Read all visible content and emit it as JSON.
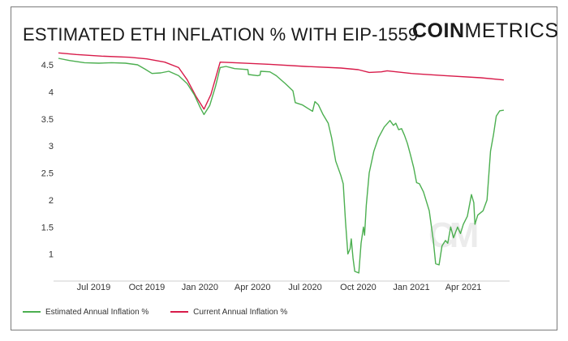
{
  "header": {
    "title": "ESTIMATED ETH INFLATION % WITH EIP-1559",
    "brand_bold": "COIN",
    "brand_regular": "METRICS",
    "watermark": "CM"
  },
  "chart_data": {
    "type": "line",
    "title": "ESTIMATED ETH INFLATION % WITH EIP-1559",
    "xlabel": "",
    "ylabel": "",
    "xlim": [
      "2019-05-01",
      "2021-06-20"
    ],
    "ylim": [
      0.5,
      4.8
    ],
    "yticks": [
      1,
      1.5,
      2,
      2.5,
      3,
      3.5,
      4,
      4.5
    ],
    "ytick_labels": [
      "1",
      "1.5",
      "2",
      "2.5",
      "3",
      "3.5",
      "4",
      "4.5"
    ],
    "xticks": [
      "2019-07-01",
      "2019-10-01",
      "2020-01-01",
      "2020-04-01",
      "2020-07-01",
      "2020-10-01",
      "2021-01-01",
      "2021-04-01"
    ],
    "xtick_labels": [
      "Jul 2019",
      "Oct 2019",
      "Jan 2020",
      "Apr 2020",
      "Jul 2020",
      "Oct 2020",
      "Jan 2021",
      "Apr 2021"
    ],
    "grid": false,
    "legend_position": "bottom-left",
    "series": [
      {
        "name": "Estimated Annual Inflation %",
        "color": "#4caf50",
        "points": [
          [
            "2019-05-01",
            4.62
          ],
          [
            "2019-05-20",
            4.58
          ],
          [
            "2019-06-15",
            4.54
          ],
          [
            "2019-07-10",
            4.53
          ],
          [
            "2019-08-01",
            4.54
          ],
          [
            "2019-08-25",
            4.53
          ],
          [
            "2019-09-15",
            4.5
          ],
          [
            "2019-09-28",
            4.42
          ],
          [
            "2019-10-10",
            4.34
          ],
          [
            "2019-10-25",
            4.35
          ],
          [
            "2019-11-08",
            4.38
          ],
          [
            "2019-11-25",
            4.3
          ],
          [
            "2019-12-10",
            4.15
          ],
          [
            "2019-12-22",
            3.95
          ],
          [
            "2020-01-02",
            3.7
          ],
          [
            "2020-01-08",
            3.58
          ],
          [
            "2020-01-18",
            3.75
          ],
          [
            "2020-01-28",
            4.1
          ],
          [
            "2020-02-05",
            4.45
          ],
          [
            "2020-02-15",
            4.47
          ],
          [
            "2020-03-01",
            4.43
          ],
          [
            "2020-03-15",
            4.42
          ],
          [
            "2020-03-24",
            4.41
          ],
          [
            "2020-03-25",
            4.32
          ],
          [
            "2020-04-10",
            4.3
          ],
          [
            "2020-04-14",
            4.31
          ],
          [
            "2020-04-15",
            4.38
          ],
          [
            "2020-05-01",
            4.37
          ],
          [
            "2020-05-12",
            4.3
          ],
          [
            "2020-05-28",
            4.15
          ],
          [
            "2020-06-10",
            4.02
          ],
          [
            "2020-06-14",
            3.8
          ],
          [
            "2020-06-26",
            3.76
          ],
          [
            "2020-07-08",
            3.68
          ],
          [
            "2020-07-14",
            3.64
          ],
          [
            "2020-07-18",
            3.82
          ],
          [
            "2020-07-24",
            3.76
          ],
          [
            "2020-08-01",
            3.58
          ],
          [
            "2020-08-10",
            3.42
          ],
          [
            "2020-08-16",
            3.15
          ],
          [
            "2020-08-23",
            2.72
          ],
          [
            "2020-09-01",
            2.45
          ],
          [
            "2020-09-05",
            2.3
          ],
          [
            "2020-09-09",
            1.6
          ],
          [
            "2020-09-13",
            1.0
          ],
          [
            "2020-09-17",
            1.1
          ],
          [
            "2020-09-19",
            1.28
          ],
          [
            "2020-09-22",
            0.92
          ],
          [
            "2020-09-25",
            0.68
          ],
          [
            "2020-10-02",
            0.65
          ],
          [
            "2020-10-06",
            1.2
          ],
          [
            "2020-10-10",
            1.5
          ],
          [
            "2020-10-12",
            1.35
          ],
          [
            "2020-10-15",
            1.9
          ],
          [
            "2020-10-20",
            2.5
          ],
          [
            "2020-10-28",
            2.9
          ],
          [
            "2020-11-05",
            3.15
          ],
          [
            "2020-11-15",
            3.35
          ],
          [
            "2020-11-25",
            3.47
          ],
          [
            "2020-12-01",
            3.38
          ],
          [
            "2020-12-05",
            3.42
          ],
          [
            "2020-12-10",
            3.3
          ],
          [
            "2020-12-15",
            3.32
          ],
          [
            "2020-12-20",
            3.2
          ],
          [
            "2020-12-25",
            3.05
          ],
          [
            "2020-12-30",
            2.85
          ],
          [
            "2021-01-05",
            2.6
          ],
          [
            "2021-01-10",
            2.32
          ],
          [
            "2021-01-15",
            2.3
          ],
          [
            "2021-01-22",
            2.15
          ],
          [
            "2021-02-01",
            1.8
          ],
          [
            "2021-02-08",
            1.25
          ],
          [
            "2021-02-12",
            0.82
          ],
          [
            "2021-02-18",
            0.8
          ],
          [
            "2021-02-23",
            1.15
          ],
          [
            "2021-03-01",
            1.25
          ],
          [
            "2021-03-05",
            1.2
          ],
          [
            "2021-03-10",
            1.5
          ],
          [
            "2021-03-15",
            1.3
          ],
          [
            "2021-03-22",
            1.5
          ],
          [
            "2021-03-27",
            1.38
          ],
          [
            "2021-04-01",
            1.55
          ],
          [
            "2021-04-08",
            1.7
          ],
          [
            "2021-04-15",
            2.1
          ],
          [
            "2021-04-19",
            1.95
          ],
          [
            "2021-04-21",
            1.55
          ],
          [
            "2021-04-26",
            1.72
          ],
          [
            "2021-05-05",
            1.8
          ],
          [
            "2021-05-12",
            2.0
          ],
          [
            "2021-05-18",
            2.9
          ],
          [
            "2021-05-23",
            3.2
          ],
          [
            "2021-05-28",
            3.55
          ],
          [
            "2021-06-03",
            3.65
          ],
          [
            "2021-06-10",
            3.66
          ]
        ]
      },
      {
        "name": "Current Annual Inflation %",
        "color": "#d81b4a",
        "points": [
          [
            "2019-05-01",
            4.72
          ],
          [
            "2019-06-01",
            4.69
          ],
          [
            "2019-07-15",
            4.66
          ],
          [
            "2019-09-01",
            4.64
          ],
          [
            "2019-10-01",
            4.61
          ],
          [
            "2019-11-01",
            4.55
          ],
          [
            "2019-11-25",
            4.45
          ],
          [
            "2019-12-10",
            4.22
          ],
          [
            "2019-12-25",
            3.92
          ],
          [
            "2020-01-08",
            3.68
          ],
          [
            "2020-01-20",
            3.95
          ],
          [
            "2020-02-05",
            4.55
          ],
          [
            "2020-03-01",
            4.54
          ],
          [
            "2020-05-01",
            4.51
          ],
          [
            "2020-07-01",
            4.47
          ],
          [
            "2020-09-01",
            4.44
          ],
          [
            "2020-10-01",
            4.41
          ],
          [
            "2020-10-20",
            4.36
          ],
          [
            "2020-11-10",
            4.37
          ],
          [
            "2020-11-20",
            4.39
          ],
          [
            "2021-01-01",
            4.34
          ],
          [
            "2021-03-01",
            4.3
          ],
          [
            "2021-05-01",
            4.26
          ],
          [
            "2021-06-10",
            4.22
          ]
        ]
      }
    ]
  }
}
